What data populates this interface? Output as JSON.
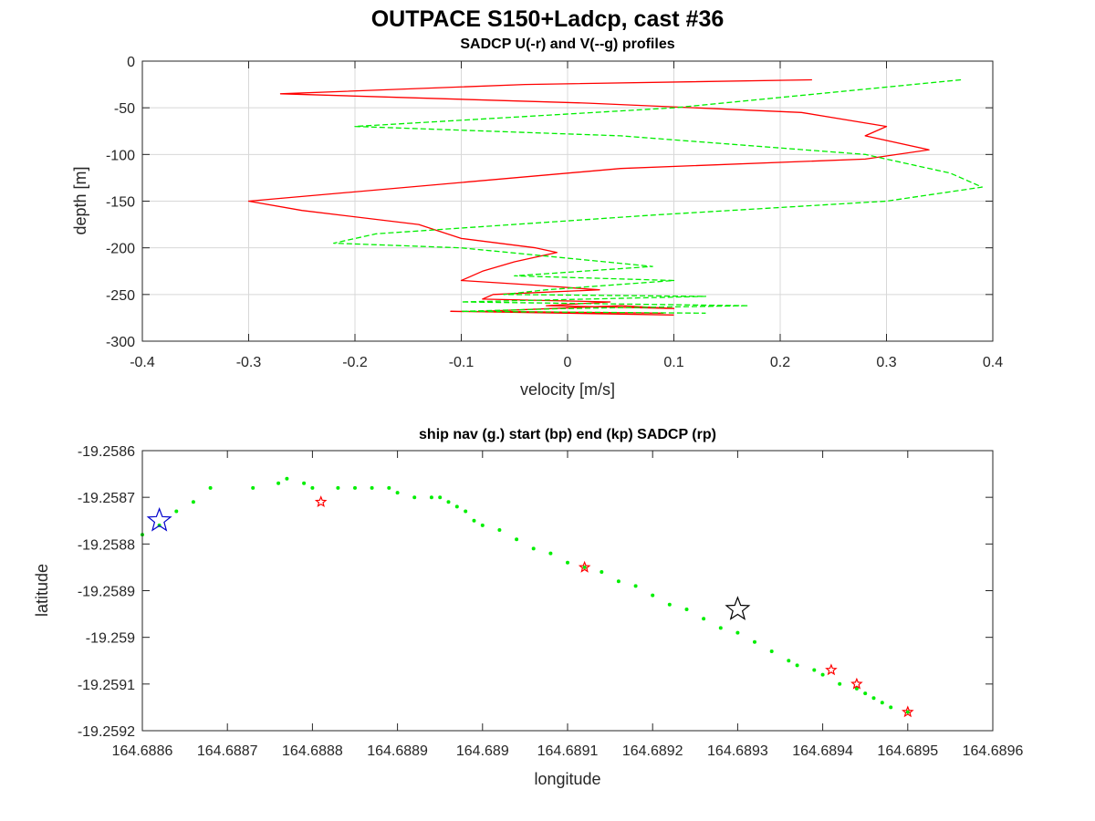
{
  "figure": {
    "title": "OUTPACE S150+Ladcp, cast #36"
  },
  "chart_data": [
    {
      "type": "line",
      "title": "SADCP U(-r) and V(--g) profiles",
      "xlabel": "velocity [m/s]",
      "ylabel": "depth [m]",
      "xlim": [
        -0.4,
        0.4
      ],
      "ylim": [
        -300,
        0
      ],
      "xticks": [
        "-0.4",
        "-0.3",
        "-0.2",
        "-0.1",
        "0",
        "0.1",
        "0.2",
        "0.3",
        "0.4"
      ],
      "yticks": [
        "0",
        "-50",
        "-100",
        "-150",
        "-200",
        "-250",
        "-300"
      ],
      "grid": true,
      "series": [
        {
          "name": "U",
          "color": "#ff0000",
          "style": "solid",
          "x": [
            0.23,
            -0.04,
            -0.27,
            0.02,
            0.22,
            0.3,
            0.28,
            0.34,
            0.28,
            0.05,
            -0.3,
            -0.25,
            -0.14,
            -0.1,
            -0.03,
            -0.01,
            -0.05,
            -0.08,
            -0.1,
            -0.03,
            0.03,
            -0.07,
            -0.08,
            0.04,
            -0.02,
            0.1,
            0.05,
            -0.08,
            0.09,
            -0.11,
            0.1
          ],
          "y": [
            -20,
            -25,
            -35,
            -45,
            -55,
            -70,
            -80,
            -95,
            -105,
            -115,
            -150,
            -160,
            -175,
            -190,
            -200,
            -205,
            -215,
            -225,
            -235,
            -240,
            -245,
            -250,
            -255,
            -258,
            -262,
            -265,
            -262,
            -268,
            -270,
            -268,
            -272
          ]
        },
        {
          "name": "V",
          "color": "#00ee00",
          "style": "dashed",
          "x": [
            0.37,
            0.1,
            -0.2,
            0.05,
            0.28,
            0.36,
            0.39,
            0.3,
            0.08,
            -0.18,
            -0.22,
            -0.1,
            0.08,
            -0.05,
            0.1,
            -0.02,
            -0.06,
            0.13,
            -0.1,
            0.17,
            0.0,
            -0.1,
            0.13
          ],
          "y": [
            -20,
            -50,
            -70,
            -80,
            -100,
            -120,
            -135,
            -150,
            -165,
            -185,
            -195,
            -200,
            -220,
            -230,
            -235,
            -245,
            -250,
            -252,
            -258,
            -262,
            -265,
            -268,
            -270
          ]
        }
      ]
    },
    {
      "type": "scatter",
      "title": "ship nav (g.) start (bp) end (kp) SADCP (rp)",
      "xlabel": "longitude",
      "ylabel": "latitude",
      "xlim": [
        164.6886,
        164.6896
      ],
      "ylim": [
        -19.2592,
        -19.2586
      ],
      "xticks": [
        "164.6886",
        "164.6887",
        "164.6888",
        "164.6889",
        "164.689",
        "164.6891",
        "164.6892",
        "164.6893",
        "164.6894",
        "164.6895",
        "164.6896"
      ],
      "yticks": [
        "-19.2586",
        "-19.2587",
        "-19.2588",
        "-19.2589",
        "-19.259",
        "-19.2591",
        "-19.2592"
      ],
      "grid": false,
      "ship_nav": {
        "color": "#00ee00",
        "x": [
          164.6886,
          164.68862,
          164.68864,
          164.68866,
          164.68868,
          164.68873,
          164.68876,
          164.68877,
          164.68879,
          164.6888,
          164.68883,
          164.68885,
          164.68887,
          164.68889,
          164.6889,
          164.68892,
          164.68894,
          164.68895,
          164.68896,
          164.68897,
          164.68898,
          164.68899,
          164.689,
          164.68902,
          164.68904,
          164.68906,
          164.68908,
          164.6891,
          164.68912,
          164.68914,
          164.68916,
          164.68918,
          164.6892,
          164.68922,
          164.68924,
          164.68926,
          164.68928,
          164.6893,
          164.68932,
          164.68934,
          164.68936,
          164.68937,
          164.68939,
          164.6894,
          164.68942,
          164.68944,
          164.68945,
          164.68946,
          164.68947,
          164.68948,
          164.6895
        ],
        "y": [
          -19.25878,
          -19.25876,
          -19.25873,
          -19.25871,
          -19.25868,
          -19.25868,
          -19.25867,
          -19.25866,
          -19.25867,
          -19.25868,
          -19.25868,
          -19.25868,
          -19.25868,
          -19.25868,
          -19.25869,
          -19.2587,
          -19.2587,
          -19.2587,
          -19.25871,
          -19.25872,
          -19.25873,
          -19.25875,
          -19.25876,
          -19.25877,
          -19.25879,
          -19.25881,
          -19.25882,
          -19.25884,
          -19.25885,
          -19.25886,
          -19.25888,
          -19.25889,
          -19.25891,
          -19.25893,
          -19.25894,
          -19.25896,
          -19.25898,
          -19.25899,
          -19.25901,
          -19.25903,
          -19.25905,
          -19.25906,
          -19.25907,
          -19.25908,
          -19.2591,
          -19.25911,
          -19.25912,
          -19.25913,
          -19.25914,
          -19.25915,
          -19.25916
        ]
      },
      "start": {
        "color": "#0000cc",
        "x": 164.68862,
        "y": -19.25875
      },
      "end": {
        "color": "#000000",
        "x": 164.6893,
        "y": -19.25894
      },
      "sadcp": {
        "color": "#ff0000",
        "x": [
          164.68881,
          164.68912,
          164.68941,
          164.68944,
          164.6895
        ],
        "y": [
          -19.25871,
          -19.25885,
          -19.25907,
          -19.2591,
          -19.25916
        ]
      }
    }
  ]
}
